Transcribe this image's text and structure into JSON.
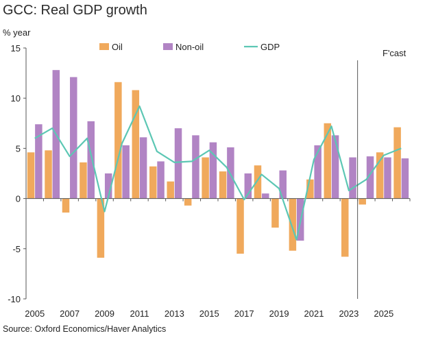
{
  "title": "GCC: Real GDP growth",
  "source": "Source: Oxford Economics/Haver Analytics",
  "chart_data": {
    "type": "bar",
    "ylabel": "% year",
    "ylim": [
      -10,
      15
    ],
    "yticks": [
      -10,
      -5,
      0,
      5,
      10,
      15
    ],
    "xtick_years": [
      2005,
      2007,
      2009,
      2011,
      2013,
      2015,
      2017,
      2019,
      2021,
      2023,
      2025
    ],
    "forecast_label": "F'cast",
    "forecast_start_year": 2024,
    "x": [
      2005,
      2006,
      2007,
      2008,
      2009,
      2010,
      2011,
      2012,
      2013,
      2014,
      2015,
      2016,
      2017,
      2018,
      2019,
      2020,
      2021,
      2022,
      2023,
      2024,
      2025,
      2026
    ],
    "series": [
      {
        "name": "Oil",
        "kind": "bar",
        "color": "#F0A95C",
        "values": [
          4.6,
          4.8,
          -1.4,
          3.6,
          -5.9,
          11.6,
          10.8,
          3.2,
          1.7,
          -0.7,
          4.1,
          2.7,
          -5.5,
          3.3,
          -2.9,
          -5.2,
          1.9,
          7.5,
          -5.8,
          -0.6,
          4.6,
          7.1
        ]
      },
      {
        "name": "Non-oil",
        "kind": "bar",
        "color": "#B184C4",
        "values": [
          7.4,
          12.8,
          12.1,
          7.7,
          2.5,
          5.3,
          6.1,
          3.7,
          7.0,
          6.3,
          5.6,
          5.1,
          2.5,
          0.5,
          2.8,
          -4.2,
          5.3,
          6.3,
          4.1,
          4.2,
          4.1,
          4.0
        ]
      },
      {
        "name": "GDP",
        "kind": "line",
        "color": "#5CC7B4",
        "values": [
          6.0,
          7.0,
          4.2,
          6.0,
          -1.3,
          5.5,
          9.2,
          4.7,
          3.6,
          3.7,
          4.8,
          3.1,
          -0.1,
          2.4,
          1.0,
          -4.1,
          3.9,
          7.2,
          0.8,
          1.9,
          4.3,
          5.0
        ]
      }
    ],
    "legend_position": "top"
  }
}
